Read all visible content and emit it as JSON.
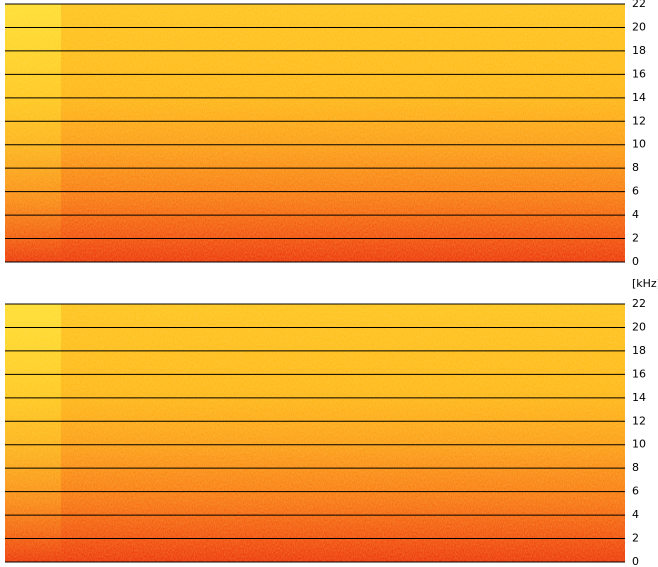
{
  "unit": "[kHz]",
  "panels": [
    {
      "ylim": [
        0,
        22
      ],
      "yticks": [
        0,
        2,
        4,
        6,
        8,
        10,
        12,
        14,
        16,
        18,
        20,
        22
      ]
    },
    {
      "ylim": [
        0,
        22
      ],
      "yticks": [
        0,
        2,
        4,
        6,
        8,
        10,
        12,
        14,
        16,
        18,
        20,
        22
      ]
    }
  ]
}
